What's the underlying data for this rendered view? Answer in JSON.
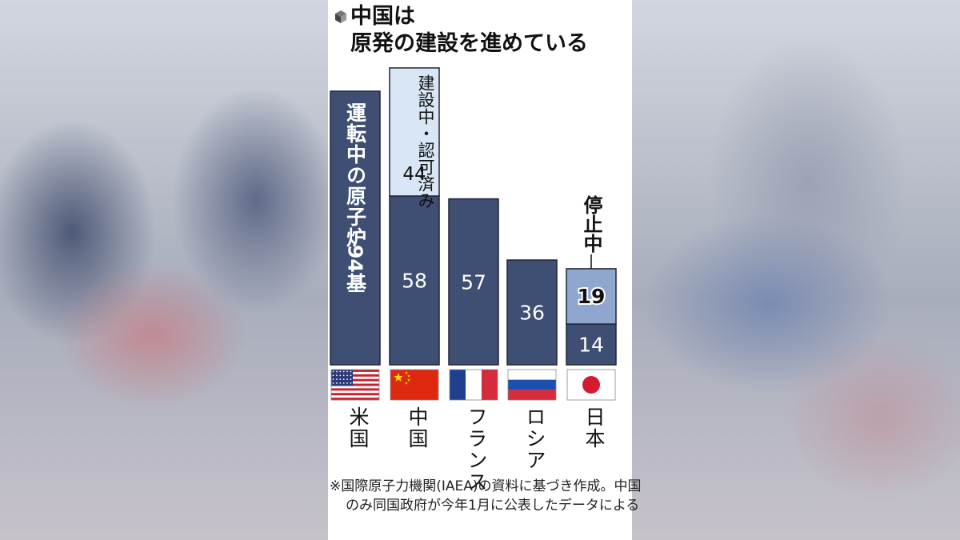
{
  "chart_data": {
    "type": "bar",
    "title_line1": "中国は",
    "title_line2": "原発の建設を進めている",
    "categories": [
      "米国",
      "中国",
      "フランス",
      "ロシア",
      "日本"
    ],
    "series": [
      {
        "name": "運転中の原子炉",
        "values": [
          94,
          58,
          57,
          36,
          14
        ]
      },
      {
        "name": "建設中・認可済み",
        "values": [
          0,
          44,
          0,
          0,
          0
        ]
      },
      {
        "name": "停止中",
        "values": [
          0,
          0,
          0,
          0,
          19
        ]
      }
    ],
    "value_labels": [
      "94",
      "58",
      "57",
      "36",
      "14"
    ],
    "china_top_label": "建設中・認可済み",
    "china_top_value": "44",
    "japan_top_label": "停止中",
    "japan_top_value": "19",
    "us_bar_label": "運転中の原子炉",
    "us_value_label": "94基",
    "colors": {
      "operating": "#3f4e73",
      "construction": "#d8e6f5",
      "stopped": "#8fa7cf"
    }
  },
  "flags": [
    "us-flag-icon",
    "china-flag-icon",
    "france-flag-icon",
    "russia-flag-icon",
    "japan-flag-icon"
  ],
  "note": "※国際原子力機関(IAEA)の資料に基づき作成。中国のみ同国政府が今年1月に公表したデータによる"
}
